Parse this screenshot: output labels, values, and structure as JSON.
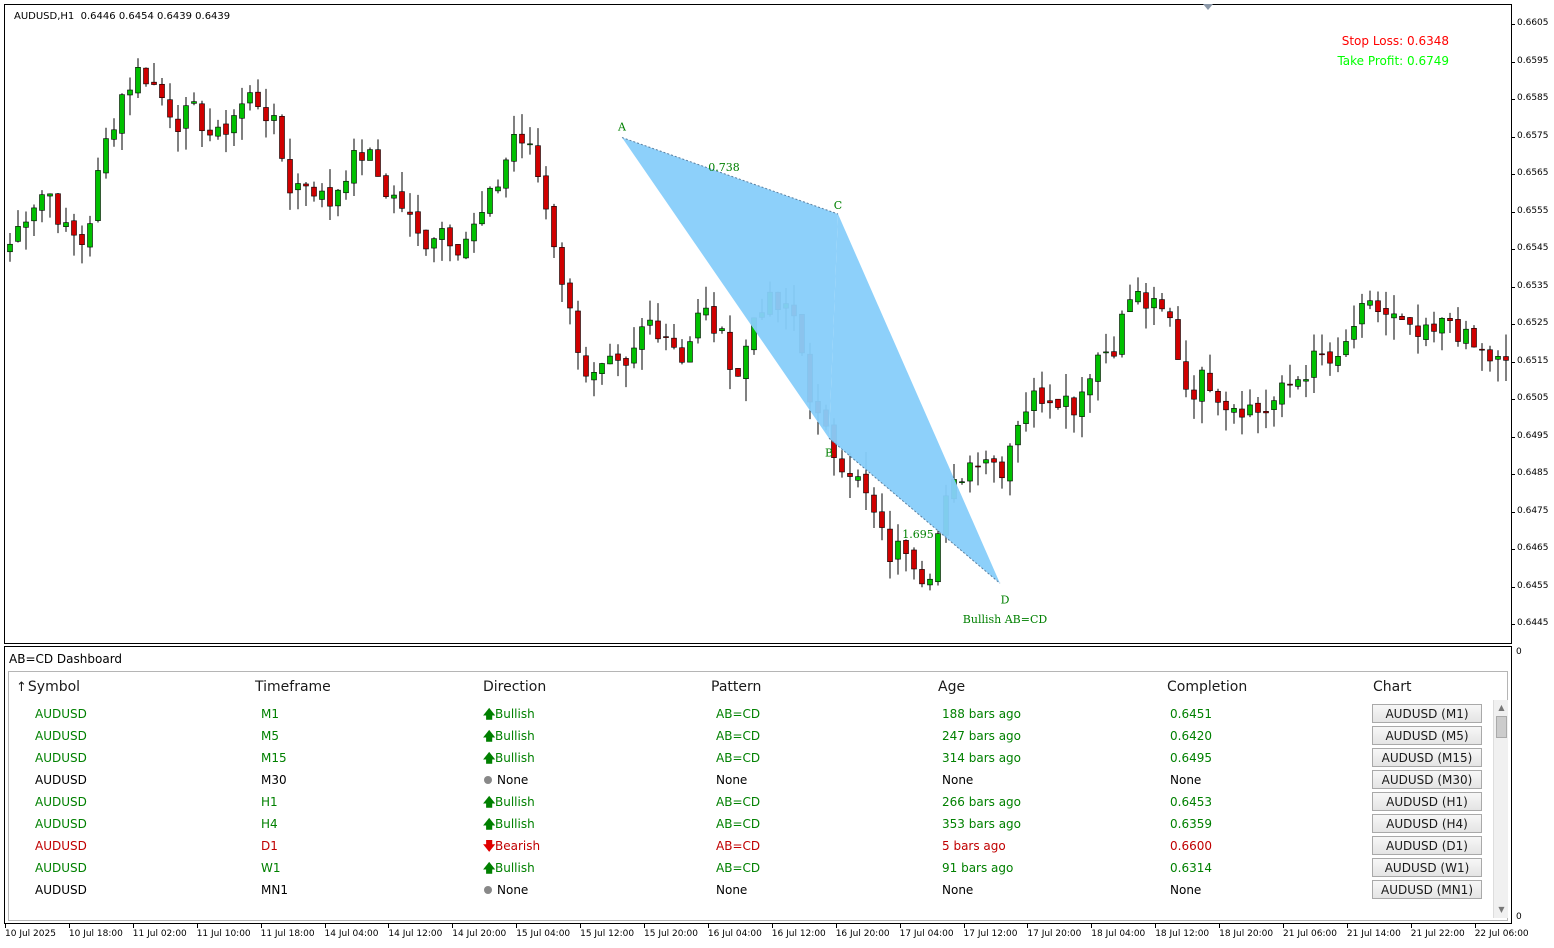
{
  "chart": {
    "symbol_info": "AUDUSD,H1  0.6446 0.6454 0.6439 0.6439",
    "stop_loss_label": "Stop Loss: 0.6348",
    "take_profit_label": "Take Profit: 0.6749",
    "colors": {
      "bull": "#00c000",
      "bear": "#d00000",
      "pattern_fill": "#87cefa",
      "pattern_text": "#008000",
      "stop_loss": "#ff0000",
      "take_profit": "#00ff00"
    },
    "pattern": {
      "name_label": "Bullish AB=CD",
      "points": [
        {
          "label": "A",
          "price": 0.65734
        },
        {
          "label": "B",
          "price": 0.64932
        },
        {
          "label": "C",
          "price": 0.6553
        },
        {
          "label": "D",
          "price": 0.64545
        }
      ],
      "ratio_bc": "0.738",
      "ratio_cd": "1.695"
    }
  },
  "price_axis": {
    "ticks": [
      "0.6605",
      "0.6595",
      "0.6585",
      "0.6575",
      "0.6565",
      "0.6555",
      "0.6545",
      "0.6535",
      "0.6525",
      "0.6515",
      "0.6505",
      "0.6495",
      "0.6485",
      "0.6475",
      "0.6465",
      "0.6455",
      "0.6445"
    ],
    "subwindow_top": "0",
    "subwindow_bottom": "0"
  },
  "time_axis": {
    "ticks": [
      "10 Jul 2025",
      "10 Jul 18:00",
      "11 Jul 02:00",
      "11 Jul 10:00",
      "11 Jul 18:00",
      "14 Jul 04:00",
      "14 Jul 12:00",
      "14 Jul 20:00",
      "15 Jul 04:00",
      "15 Jul 12:00",
      "15 Jul 20:00",
      "16 Jul 04:00",
      "16 Jul 12:00",
      "16 Jul 20:00",
      "17 Jul 04:00",
      "17 Jul 12:00",
      "17 Jul 20:00",
      "18 Jul 04:00",
      "18 Jul 12:00",
      "18 Jul 20:00",
      "21 Jul 06:00",
      "21 Jul 14:00",
      "21 Jul 22:00",
      "22 Jul 06:00"
    ]
  },
  "dashboard": {
    "title": "AB=CD Dashboard",
    "sort_icon": "sort-up-arrow",
    "columns": [
      "Symbol",
      "Timeframe",
      "Direction",
      "Pattern",
      "Age",
      "Completion",
      "Chart"
    ],
    "rows": [
      {
        "symbol": "AUDUSD",
        "timeframe": "M1",
        "direction": "Bullish",
        "pattern": "AB=CD",
        "age": "188 bars ago",
        "completion": "0.6451",
        "chart": "AUDUSD (M1)",
        "color": "#008000"
      },
      {
        "symbol": "AUDUSD",
        "timeframe": "M5",
        "direction": "Bullish",
        "pattern": "AB=CD",
        "age": "247 bars ago",
        "completion": "0.6420",
        "chart": "AUDUSD (M5)",
        "color": "#008000"
      },
      {
        "symbol": "AUDUSD",
        "timeframe": "M15",
        "direction": "Bullish",
        "pattern": "AB=CD",
        "age": "314 bars ago",
        "completion": "0.6495",
        "chart": "AUDUSD (M15)",
        "color": "#008000"
      },
      {
        "symbol": "AUDUSD",
        "timeframe": "M30",
        "direction": "None",
        "pattern": "None",
        "age": "None",
        "completion": "None",
        "chart": "AUDUSD (M30)",
        "color": "#000000"
      },
      {
        "symbol": "AUDUSD",
        "timeframe": "H1",
        "direction": "Bullish",
        "pattern": "AB=CD",
        "age": "266 bars ago",
        "completion": "0.6453",
        "chart": "AUDUSD (H1)",
        "color": "#008000"
      },
      {
        "symbol": "AUDUSD",
        "timeframe": "H4",
        "direction": "Bullish",
        "pattern": "AB=CD",
        "age": "353 bars ago",
        "completion": "0.6359",
        "chart": "AUDUSD (H4)",
        "color": "#008000"
      },
      {
        "symbol": "AUDUSD",
        "timeframe": "D1",
        "direction": "Bearish",
        "pattern": "AB=CD",
        "age": "5 bars ago",
        "completion": "0.6600",
        "chart": "AUDUSD (D1)",
        "color": "#c00000"
      },
      {
        "symbol": "AUDUSD",
        "timeframe": "W1",
        "direction": "Bullish",
        "pattern": "AB=CD",
        "age": "91 bars ago",
        "completion": "0.6314",
        "chart": "AUDUSD (W1)",
        "color": "#008000"
      },
      {
        "symbol": "AUDUSD",
        "timeframe": "MN1",
        "direction": "None",
        "pattern": "None",
        "age": "None",
        "completion": "None",
        "chart": "AUDUSD (MN1)",
        "color": "#000000"
      }
    ],
    "direction_icons": {
      "Bullish": "arrow-up-icon",
      "Bearish": "arrow-down-icon",
      "None": "dot-icon"
    }
  },
  "chart_data": {
    "type": "candlestick",
    "symbol": "AUDUSD",
    "timeframe": "H1",
    "ylim": [
      0.644,
      0.6611
    ],
    "x": [
      "10 Jul 2025",
      "10 Jul 18:00",
      "11 Jul 02:00",
      "11 Jul 10:00",
      "11 Jul 18:00",
      "14 Jul 04:00",
      "14 Jul 12:00",
      "14 Jul 20:00",
      "15 Jul 04:00",
      "15 Jul 12:00",
      "15 Jul 20:00",
      "16 Jul 04:00",
      "16 Jul 12:00",
      "16 Jul 20:00",
      "17 Jul 04:00",
      "17 Jul 12:00",
      "17 Jul 20:00",
      "18 Jul 04:00",
      "18 Jul 12:00",
      "18 Jul 20:00",
      "21 Jul 06:00",
      "21 Jul 14:00",
      "21 Jul 22:00",
      "22 Jul 06:00"
    ],
    "close_path": [
      0.6545,
      0.6555,
      0.656,
      0.6548,
      0.6545,
      0.657,
      0.6585,
      0.6592,
      0.6585,
      0.6578,
      0.658,
      0.6572,
      0.658,
      0.6585,
      0.6578,
      0.656,
      0.6562,
      0.6555,
      0.6565,
      0.657,
      0.656,
      0.6555,
      0.6545,
      0.655,
      0.6545,
      0.655,
      0.656,
      0.6575,
      0.6568,
      0.6548,
      0.6525,
      0.6508,
      0.6512,
      0.651,
      0.6525,
      0.6522,
      0.6515,
      0.6528,
      0.652,
      0.651,
      0.653,
      0.6528,
      0.6525,
      0.65,
      0.649,
      0.6485,
      0.6475,
      0.6462,
      0.6465,
      0.6455,
      0.6475,
      0.6485,
      0.649,
      0.6485,
      0.65,
      0.6505,
      0.6505,
      0.6502,
      0.6515,
      0.6518,
      0.6532,
      0.6528,
      0.6525,
      0.6505,
      0.651,
      0.6503,
      0.6502,
      0.65,
      0.6505,
      0.651,
      0.6515,
      0.6512,
      0.6525,
      0.6528,
      0.6525,
      0.652,
      0.652,
      0.6525,
      0.6518,
      0.6515,
      0.6512
    ]
  }
}
